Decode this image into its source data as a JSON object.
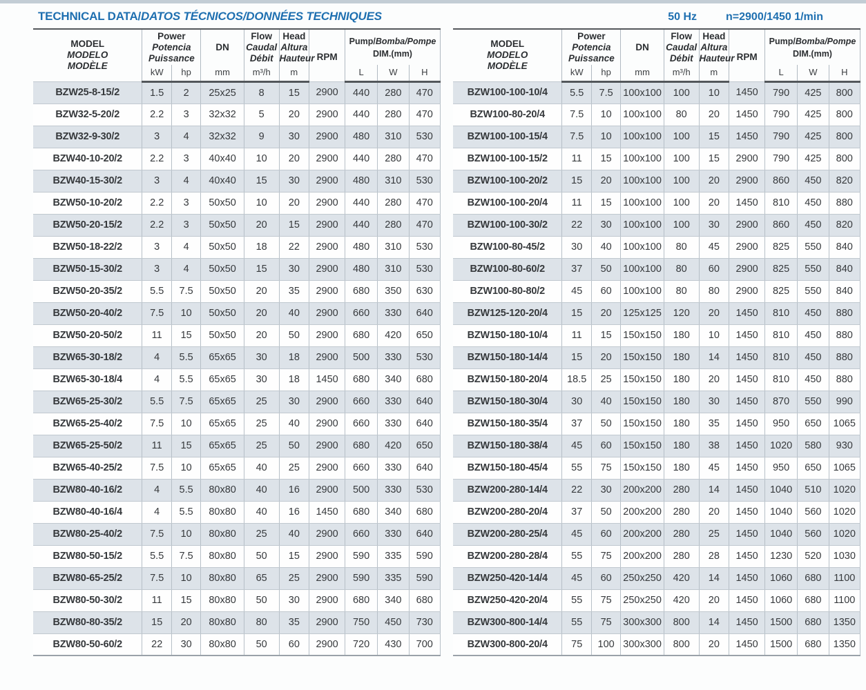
{
  "title": {
    "part1": "TECHNICAL DATA/",
    "part2": "DATOS TÉCNICOS/DONNÉES TECHNIQUES"
  },
  "frequency": "50 Hz",
  "speed": "n=2900/1450 1/min",
  "colors": {
    "title_blue": "#1e6fb0",
    "row_shade": "#dde3e9",
    "dark_rule": "#53575b"
  },
  "header": {
    "model": [
      "MODEL",
      "MODELO",
      "MODÈLE"
    ],
    "power": [
      "Power",
      "Potencia",
      "Puissance"
    ],
    "dn": "DN",
    "flow": [
      "Flow",
      "Caudal",
      "Débit"
    ],
    "head": [
      "Head",
      "Altura",
      "Hauteur"
    ],
    "rpm": "RPM",
    "pump_dim": {
      "line1_regular": "Pump/",
      "line1_italic": "Bomba/Pompe",
      "line2": "DIM.(mm)"
    },
    "units": {
      "kw": "kW",
      "hp": "hp",
      "mm": "mm",
      "flow": "m³/h",
      "head": "m",
      "l": "L",
      "w": "W",
      "h": "H"
    }
  },
  "left_table": {
    "rows": [
      [
        "BZW25-8-15/2",
        "1.5",
        "2",
        "25x25",
        "8",
        "15",
        "2900",
        "440",
        "280",
        "470"
      ],
      [
        "BZW32-5-20/2",
        "2.2",
        "3",
        "32x32",
        "5",
        "20",
        "2900",
        "440",
        "280",
        "470"
      ],
      [
        "BZW32-9-30/2",
        "3",
        "4",
        "32x32",
        "9",
        "30",
        "2900",
        "480",
        "310",
        "530"
      ],
      [
        "BZW40-10-20/2",
        "2.2",
        "3",
        "40x40",
        "10",
        "20",
        "2900",
        "440",
        "280",
        "470"
      ],
      [
        "BZW40-15-30/2",
        "3",
        "4",
        "40x40",
        "15",
        "30",
        "2900",
        "480",
        "310",
        "530"
      ],
      [
        "BZW50-10-20/2",
        "2.2",
        "3",
        "50x50",
        "10",
        "20",
        "2900",
        "440",
        "280",
        "470"
      ],
      [
        "BZW50-20-15/2",
        "2.2",
        "3",
        "50x50",
        "20",
        "15",
        "2900",
        "440",
        "280",
        "470"
      ],
      [
        "BZW50-18-22/2",
        "3",
        "4",
        "50x50",
        "18",
        "22",
        "2900",
        "480",
        "310",
        "530"
      ],
      [
        "BZW50-15-30/2",
        "3",
        "4",
        "50x50",
        "15",
        "30",
        "2900",
        "480",
        "310",
        "530"
      ],
      [
        "BZW50-20-35/2",
        "5.5",
        "7.5",
        "50x50",
        "20",
        "35",
        "2900",
        "680",
        "350",
        "630"
      ],
      [
        "BZW50-20-40/2",
        "7.5",
        "10",
        "50x50",
        "20",
        "40",
        "2900",
        "660",
        "330",
        "640"
      ],
      [
        "BZW50-20-50/2",
        "11",
        "15",
        "50x50",
        "20",
        "50",
        "2900",
        "680",
        "420",
        "650"
      ],
      [
        "BZW65-30-18/2",
        "4",
        "5.5",
        "65x65",
        "30",
        "18",
        "2900",
        "500",
        "330",
        "530"
      ],
      [
        "BZW65-30-18/4",
        "4",
        "5.5",
        "65x65",
        "30",
        "18",
        "1450",
        "680",
        "340",
        "680"
      ],
      [
        "BZW65-25-30/2",
        "5.5",
        "7.5",
        "65x65",
        "25",
        "30",
        "2900",
        "660",
        "330",
        "640"
      ],
      [
        "BZW65-25-40/2",
        "7.5",
        "10",
        "65x65",
        "25",
        "40",
        "2900",
        "660",
        "330",
        "640"
      ],
      [
        "BZW65-25-50/2",
        "11",
        "15",
        "65x65",
        "25",
        "50",
        "2900",
        "680",
        "420",
        "650"
      ],
      [
        "BZW65-40-25/2",
        "7.5",
        "10",
        "65x65",
        "40",
        "25",
        "2900",
        "660",
        "330",
        "640"
      ],
      [
        "BZW80-40-16/2",
        "4",
        "5.5",
        "80x80",
        "40",
        "16",
        "2900",
        "500",
        "330",
        "530"
      ],
      [
        "BZW80-40-16/4",
        "4",
        "5.5",
        "80x80",
        "40",
        "16",
        "1450",
        "680",
        "340",
        "680"
      ],
      [
        "BZW80-25-40/2",
        "7.5",
        "10",
        "80x80",
        "25",
        "40",
        "2900",
        "660",
        "330",
        "640"
      ],
      [
        "BZW80-50-15/2",
        "5.5",
        "7.5",
        "80x80",
        "50",
        "15",
        "2900",
        "590",
        "335",
        "590"
      ],
      [
        "BZW80-65-25/2",
        "7.5",
        "10",
        "80x80",
        "65",
        "25",
        "2900",
        "590",
        "335",
        "590"
      ],
      [
        "BZW80-50-30/2",
        "11",
        "15",
        "80x80",
        "50",
        "30",
        "2900",
        "680",
        "340",
        "680"
      ],
      [
        "BZW80-80-35/2",
        "15",
        "20",
        "80x80",
        "80",
        "35",
        "2900",
        "750",
        "450",
        "730"
      ],
      [
        "BZW80-50-60/2",
        "22",
        "30",
        "80x80",
        "50",
        "60",
        "2900",
        "720",
        "430",
        "700"
      ]
    ]
  },
  "right_table": {
    "rows": [
      [
        "BZW100-100-10/4",
        "5.5",
        "7.5",
        "100x100",
        "100",
        "10",
        "1450",
        "790",
        "425",
        "800"
      ],
      [
        "BZW100-80-20/4",
        "7.5",
        "10",
        "100x100",
        "80",
        "20",
        "1450",
        "790",
        "425",
        "800"
      ],
      [
        "BZW100-100-15/4",
        "7.5",
        "10",
        "100x100",
        "100",
        "15",
        "1450",
        "790",
        "425",
        "800"
      ],
      [
        "BZW100-100-15/2",
        "11",
        "15",
        "100x100",
        "100",
        "15",
        "2900",
        "790",
        "425",
        "800"
      ],
      [
        "BZW100-100-20/2",
        "15",
        "20",
        "100x100",
        "100",
        "20",
        "2900",
        "860",
        "450",
        "820"
      ],
      [
        "BZW100-100-20/4",
        "11",
        "15",
        "100x100",
        "100",
        "20",
        "1450",
        "810",
        "450",
        "880"
      ],
      [
        "BZW100-100-30/2",
        "22",
        "30",
        "100x100",
        "100",
        "30",
        "2900",
        "860",
        "450",
        "820"
      ],
      [
        "BZW100-80-45/2",
        "30",
        "40",
        "100x100",
        "80",
        "45",
        "2900",
        "825",
        "550",
        "840"
      ],
      [
        "BZW100-80-60/2",
        "37",
        "50",
        "100x100",
        "80",
        "60",
        "2900",
        "825",
        "550",
        "840"
      ],
      [
        "BZW100-80-80/2",
        "45",
        "60",
        "100x100",
        "80",
        "80",
        "2900",
        "825",
        "550",
        "840"
      ],
      [
        "BZW125-120-20/4",
        "15",
        "20",
        "125x125",
        "120",
        "20",
        "1450",
        "810",
        "450",
        "880"
      ],
      [
        "BZW150-180-10/4",
        "11",
        "15",
        "150x150",
        "180",
        "10",
        "1450",
        "810",
        "450",
        "880"
      ],
      [
        "BZW150-180-14/4",
        "15",
        "20",
        "150x150",
        "180",
        "14",
        "1450",
        "810",
        "450",
        "880"
      ],
      [
        "BZW150-180-20/4",
        "18.5",
        "25",
        "150x150",
        "180",
        "20",
        "1450",
        "810",
        "450",
        "880"
      ],
      [
        "BZW150-180-30/4",
        "30",
        "40",
        "150x150",
        "180",
        "30",
        "1450",
        "870",
        "550",
        "990"
      ],
      [
        "BZW150-180-35/4",
        "37",
        "50",
        "150x150",
        "180",
        "35",
        "1450",
        "950",
        "650",
        "1065"
      ],
      [
        "BZW150-180-38/4",
        "45",
        "60",
        "150x150",
        "180",
        "38",
        "1450",
        "1020",
        "580",
        "930"
      ],
      [
        "BZW150-180-45/4",
        "55",
        "75",
        "150x150",
        "180",
        "45",
        "1450",
        "950",
        "650",
        "1065"
      ],
      [
        "BZW200-280-14/4",
        "22",
        "30",
        "200x200",
        "280",
        "14",
        "1450",
        "1040",
        "510",
        "1020"
      ],
      [
        "BZW200-280-20/4",
        "37",
        "50",
        "200x200",
        "280",
        "20",
        "1450",
        "1040",
        "560",
        "1020"
      ],
      [
        "BZW200-280-25/4",
        "45",
        "60",
        "200x200",
        "280",
        "25",
        "1450",
        "1040",
        "560",
        "1020"
      ],
      [
        "BZW200-280-28/4",
        "55",
        "75",
        "200x200",
        "280",
        "28",
        "1450",
        "1230",
        "520",
        "1030"
      ],
      [
        "BZW250-420-14/4",
        "45",
        "60",
        "250x250",
        "420",
        "14",
        "1450",
        "1060",
        "680",
        "1100"
      ],
      [
        "BZW250-420-20/4",
        "55",
        "75",
        "250x250",
        "420",
        "20",
        "1450",
        "1060",
        "680",
        "1100"
      ],
      [
        "BZW300-800-14/4",
        "55",
        "75",
        "300x300",
        "800",
        "14",
        "1450",
        "1500",
        "680",
        "1350"
      ],
      [
        "BZW300-800-20/4",
        "75",
        "100",
        "300x300",
        "800",
        "20",
        "1450",
        "1500",
        "680",
        "1350"
      ]
    ]
  }
}
